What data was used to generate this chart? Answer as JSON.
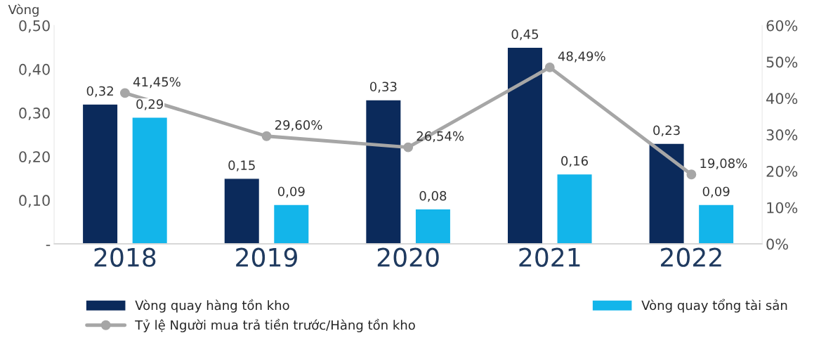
{
  "chart_data": {
    "type": "bar",
    "ylabel": "Vòng",
    "categories": [
      "2018",
      "2019",
      "2020",
      "2021",
      "2022"
    ],
    "series": [
      {
        "name": "Vòng quay hàng tồn kho",
        "color": "#0b2a5b",
        "values": [
          0.32,
          0.15,
          0.33,
          0.45,
          0.23
        ],
        "value_labels": [
          "0,32",
          "0,15",
          "0,33",
          "0,45",
          "0,23"
        ]
      },
      {
        "name": "Vòng quay tổng tài sản",
        "color": "#13b5ea",
        "values": [
          0.29,
          0.09,
          0.08,
          0.16,
          0.09
        ],
        "value_labels": [
          "0,29",
          "0,09",
          "0,08",
          "0,16",
          "0,09"
        ]
      },
      {
        "name": "Tỷ lệ Người mua trả tiền trước/Hàng tồn kho",
        "type": "line",
        "axis": "y2",
        "color": "#a6a6a6",
        "marker": "circle",
        "values": [
          41.45,
          29.6,
          26.54,
          48.49,
          19.08
        ],
        "value_labels": [
          "41,45%",
          "29,60%",
          "26,54%",
          "48,49%",
          "19,08%"
        ]
      }
    ],
    "ylim": [
      0,
      0.5
    ],
    "yticks": [
      {
        "value": 0,
        "label": "-"
      },
      {
        "value": 0.1,
        "label": "0,10"
      },
      {
        "value": 0.2,
        "label": "0,20"
      },
      {
        "value": 0.3,
        "label": "0,30"
      },
      {
        "value": 0.4,
        "label": "0,40"
      },
      {
        "value": 0.5,
        "label": "0,50"
      }
    ],
    "y2lim": [
      0,
      60
    ],
    "y2ticks": [
      {
        "value": 0,
        "label": "0%"
      },
      {
        "value": 10,
        "label": "10%"
      },
      {
        "value": 20,
        "label": "20%"
      },
      {
        "value": 30,
        "label": "30%"
      },
      {
        "value": 40,
        "label": "40%"
      },
      {
        "value": 50,
        "label": "50%"
      },
      {
        "value": 60,
        "label": "60%"
      }
    ],
    "grid": false,
    "legend": "bottom"
  }
}
